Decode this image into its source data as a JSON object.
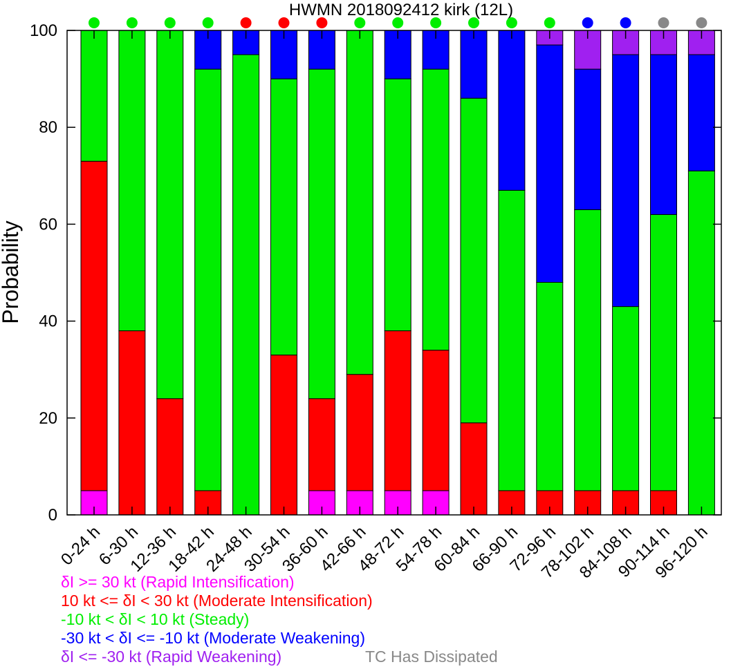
{
  "chart_data": {
    "type": "bar",
    "stacked": true,
    "title": "HWMN 2018092412 kirk (12L)",
    "ylabel": "Probability",
    "xlabel": "",
    "ylim": [
      0,
      100
    ],
    "yticks": [
      0,
      20,
      40,
      60,
      80,
      100
    ],
    "categories": [
      "0-24 h",
      "6-30 h",
      "12-36 h",
      "18-42 h",
      "24-48 h",
      "30-54 h",
      "36-60 h",
      "42-66 h",
      "48-72 h",
      "54-78 h",
      "60-84 h",
      "66-90 h",
      "72-96 h",
      "78-102 h",
      "84-108 h",
      "90-114 h",
      "96-120 h"
    ],
    "series": [
      {
        "name": "δI >= 30 kt (Rapid Intensification)",
        "color": "#ff00ff",
        "values": [
          5,
          0,
          0,
          0,
          0,
          0,
          5,
          5,
          5,
          5,
          0,
          0,
          0,
          0,
          0,
          0,
          0
        ]
      },
      {
        "name": "10 kt <= δI < 30 kt (Moderate Intensification)",
        "color": "#ff0000",
        "values": [
          68,
          38,
          24,
          5,
          0,
          33,
          19,
          24,
          33,
          29,
          19,
          5,
          5,
          5,
          5,
          5,
          0
        ]
      },
      {
        "name": "-10 kt < δI < 10 kt (Steady)",
        "color": "#00ee00",
        "values": [
          27,
          62,
          76,
          87,
          95,
          57,
          68,
          71,
          52,
          58,
          67,
          62,
          43,
          58,
          38,
          57,
          71
        ]
      },
      {
        "name": "-30 kt < δI <= -10 kt (Moderate Weakening)",
        "color": "#0000ff",
        "values": [
          0,
          0,
          0,
          8,
          5,
          10,
          8,
          0,
          10,
          8,
          14,
          33,
          49,
          29,
          52,
          33,
          24
        ]
      },
      {
        "name": "δI <= -30 kt (Rapid Weakening)",
        "color": "#a020f0",
        "values": [
          0,
          0,
          0,
          0,
          0,
          0,
          0,
          0,
          0,
          0,
          0,
          0,
          3,
          8,
          5,
          5,
          5
        ]
      }
    ],
    "top_markers": [
      "steady",
      "steady",
      "steady",
      "steady",
      "moderate_intensification",
      "moderate_intensification",
      "moderate_intensification",
      "steady",
      "steady",
      "steady",
      "steady",
      "steady",
      "steady",
      "moderate_weakening",
      "moderate_weakening",
      "dissipated",
      "dissipated"
    ],
    "marker_colors": {
      "steady": "#00ee00",
      "moderate_intensification": "#ff0000",
      "moderate_weakening": "#0000ff",
      "dissipated": "#888888"
    },
    "legend": [
      {
        "text": "δI >= 30 kt (Rapid Intensification)",
        "color": "#ff00ff"
      },
      {
        "text": "10 kt <= δI < 30 kt (Moderate Intensification)",
        "color": "#ff0000"
      },
      {
        "text": "-10 kt < δI < 10 kt (Steady)",
        "color": "#00ee00"
      },
      {
        "text": "-30 kt < δI <= -10 kt (Moderate Weakening)",
        "color": "#0000ff"
      },
      {
        "text": "δI <= -30 kt (Rapid Weakening)",
        "color": "#a020f0"
      },
      {
        "text": "TC Has Dissipated",
        "color": "#888888"
      }
    ],
    "legend_placement": "bottom-left",
    "grid": false
  }
}
